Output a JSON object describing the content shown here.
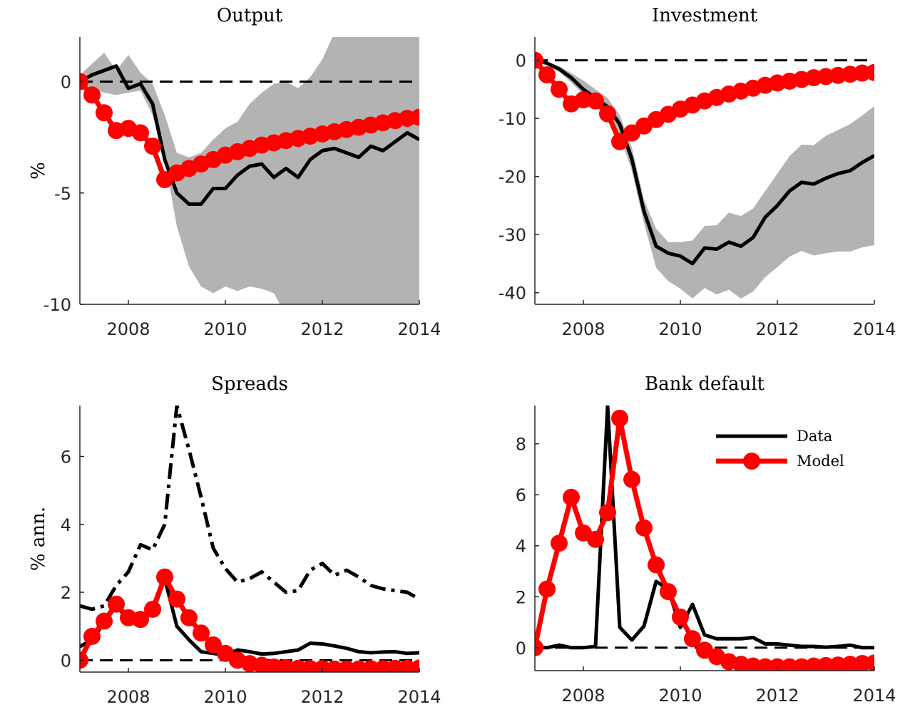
{
  "chart_data": [
    {
      "type": "line",
      "title": "Output",
      "ylabel": "%",
      "x": [
        2007,
        2007.25,
        2007.5,
        2007.75,
        2008,
        2008.25,
        2008.5,
        2008.75,
        2009,
        2009.25,
        2009.5,
        2009.75,
        2010,
        2010.25,
        2010.5,
        2010.75,
        2011,
        2011.25,
        2011.5,
        2011.75,
        2012,
        2012.25,
        2012.5,
        2012.75,
        2013,
        2013.25,
        2013.5,
        2013.75,
        2014
      ],
      "xlim": [
        2007,
        2014
      ],
      "xticks": [
        2008,
        2010,
        2012,
        2014
      ],
      "ylim": [
        -10,
        2
      ],
      "yticks": [
        -10,
        -5,
        0
      ],
      "reference_line": 0,
      "band": {
        "color": "#b3b3b3",
        "upper": [
          0.3,
          0.8,
          1.3,
          0.5,
          1.2,
          0.4,
          -0.1,
          -1.5,
          -3.2,
          -3.4,
          -3.2,
          -2.6,
          -2.1,
          -1.8,
          -1.0,
          -0.5,
          -0.1,
          0,
          -0.3,
          0.2,
          1,
          2.2,
          2.2,
          2.2,
          2.2,
          2.2,
          2.2,
          2.2,
          2.2
        ],
        "lower": [
          0,
          -0.3,
          -0.5,
          -0.6,
          -0.5,
          -0.4,
          -1.5,
          -3.5,
          -6.5,
          -8.3,
          -9.2,
          -9.5,
          -9.2,
          -9.4,
          -9.2,
          -9.3,
          -9.5,
          -10.5,
          -11,
          -11,
          -11,
          -11,
          -11,
          -11,
          -11,
          -11,
          -11,
          -11,
          -11
        ]
      },
      "series": [
        {
          "color": "#000000",
          "style": "solid",
          "values": [
            0,
            0.3,
            0.5,
            0.7,
            -0.3,
            -0.1,
            -1,
            -3.5,
            -5,
            -5.5,
            -5.5,
            -4.8,
            -4.8,
            -4.2,
            -3.8,
            -3.7,
            -4.3,
            -3.9,
            -4.3,
            -3.5,
            -3.1,
            -3.0,
            -3.2,
            -3.4,
            -2.9,
            -3.1,
            -2.7,
            -2.3,
            -2.6
          ]
        },
        {
          "color": "#ff0000",
          "style": "marker",
          "values": [
            0,
            -0.6,
            -1.4,
            -2.2,
            -2.1,
            -2.3,
            -2.9,
            -4.4,
            -4.1,
            -3.9,
            -3.7,
            -3.5,
            -3.3,
            -3.15,
            -3.0,
            -2.85,
            -2.75,
            -2.65,
            -2.55,
            -2.45,
            -2.35,
            -2.25,
            -2.15,
            -2.05,
            -1.95,
            -1.85,
            -1.75,
            -1.65,
            -1.6
          ]
        }
      ]
    },
    {
      "type": "line",
      "title": "Investment",
      "x": [
        2007,
        2007.25,
        2007.5,
        2007.75,
        2008,
        2008.25,
        2008.5,
        2008.75,
        2009,
        2009.25,
        2009.5,
        2009.75,
        2010,
        2010.25,
        2010.5,
        2010.75,
        2011,
        2011.25,
        2011.5,
        2011.75,
        2012,
        2012.25,
        2012.5,
        2012.75,
        2013,
        2013.25,
        2013.5,
        2013.75,
        2014
      ],
      "xlim": [
        2007,
        2014
      ],
      "xticks": [
        2008,
        2010,
        2012,
        2014
      ],
      "ylim": [
        -42,
        4
      ],
      "yticks": [
        -40,
        -30,
        -20,
        -10,
        0
      ],
      "reference_line": 0,
      "band": {
        "color": "#b3b3b3",
        "upper": [
          0,
          -0.3,
          -1,
          -2.2,
          -3.5,
          -5,
          -6.5,
          -9.5,
          -15,
          -24,
          -29,
          -31.3,
          -31.3,
          -31,
          -28.5,
          -28.4,
          -26.2,
          -26.8,
          -25.5,
          -22.5,
          -19.5,
          -16.5,
          -14.5,
          -14.6,
          -13,
          -12,
          -11,
          -9.5,
          -7.9
        ],
        "lower": [
          0,
          -0.8,
          -2,
          -3.8,
          -6,
          -8,
          -9.8,
          -13,
          -19,
          -28,
          -35.7,
          -38,
          -39.3,
          -41,
          -39.2,
          -40.3,
          -39.5,
          -41,
          -39.8,
          -37.3,
          -35.6,
          -33.8,
          -32.8,
          -33.6,
          -33.2,
          -32.9,
          -32.9,
          -32.2,
          -31.8
        ]
      },
      "series": [
        {
          "color": "#000000",
          "style": "solid",
          "values": [
            0,
            -0.5,
            -1.5,
            -3,
            -5,
            -6.5,
            -8,
            -11,
            -17,
            -26,
            -32,
            -33.2,
            -33.7,
            -35,
            -32.3,
            -32.5,
            -31.3,
            -32,
            -30.5,
            -27,
            -25,
            -22.5,
            -21,
            -21.3,
            -20.3,
            -19.5,
            -19,
            -17.6,
            -16.4
          ]
        },
        {
          "color": "#ff0000",
          "style": "marker",
          "values": [
            0,
            -2.5,
            -5,
            -7.5,
            -6.8,
            -7,
            -9.2,
            -14,
            -12.5,
            -11.3,
            -10.2,
            -9.3,
            -8.4,
            -7.7,
            -7,
            -6.4,
            -5.8,
            -5.3,
            -4.8,
            -4.3,
            -3.9,
            -3.6,
            -3.3,
            -3.0,
            -2.8,
            -2.6,
            -2.4,
            -2.2,
            -2.1
          ]
        }
      ]
    },
    {
      "type": "line",
      "title": "Spreads",
      "ylabel": "% ann.",
      "x": [
        2007,
        2007.25,
        2007.5,
        2007.75,
        2008,
        2008.25,
        2008.5,
        2008.75,
        2009,
        2009.25,
        2009.5,
        2009.75,
        2010,
        2010.25,
        2010.5,
        2010.75,
        2011,
        2011.25,
        2011.5,
        2011.75,
        2012,
        2012.25,
        2012.5,
        2012.75,
        2013,
        2013.25,
        2013.5,
        2013.75,
        2014
      ],
      "xlim": [
        2007,
        2014
      ],
      "xticks": [
        2008,
        2010,
        2012,
        2014
      ],
      "ylim": [
        -0.35,
        7.5
      ],
      "yticks": [
        0,
        2,
        4,
        6
      ],
      "reference_line": 0,
      "series": [
        {
          "color": "#000000",
          "style": "dashdot",
          "values": [
            1.6,
            1.5,
            1.6,
            2.2,
            2.6,
            3.4,
            3.25,
            4.0,
            7.5,
            6.2,
            4.8,
            3.3,
            2.7,
            2.3,
            2.4,
            2.6,
            2.3,
            2.0,
            2.05,
            2.65,
            2.85,
            2.5,
            2.65,
            2.45,
            2.2,
            2.1,
            2.05,
            2.0,
            1.8
          ]
        },
        {
          "color": "#000000",
          "style": "solid",
          "values": [
            0.4,
            0.6,
            1.1,
            1.6,
            1.2,
            1.15,
            1.4,
            2.4,
            1.0,
            0.6,
            0.25,
            0.2,
            0.15,
            0.3,
            0.25,
            0.18,
            0.2,
            0.25,
            0.3,
            0.5,
            0.48,
            0.42,
            0.35,
            0.25,
            0.22,
            0.24,
            0.25,
            0.2,
            0.22
          ]
        },
        {
          "color": "#ff0000",
          "style": "marker",
          "values": [
            0,
            0.7,
            1.15,
            1.65,
            1.25,
            1.2,
            1.5,
            2.45,
            1.8,
            1.25,
            0.8,
            0.45,
            0.2,
            0.0,
            -0.1,
            -0.15,
            -0.2,
            -0.22,
            -0.24,
            -0.25,
            -0.25,
            -0.26,
            -0.26,
            -0.26,
            -0.25,
            -0.25,
            -0.24,
            -0.24,
            -0.23
          ]
        }
      ]
    },
    {
      "type": "line",
      "title": "Bank default",
      "legend": "northeast",
      "x": [
        2007,
        2007.25,
        2007.5,
        2007.75,
        2008,
        2008.25,
        2008.5,
        2008.75,
        2009,
        2009.25,
        2009.5,
        2009.75,
        2010,
        2010.25,
        2010.5,
        2010.75,
        2011,
        2011.25,
        2011.5,
        2011.75,
        2012,
        2012.25,
        2012.5,
        2012.75,
        2013,
        2013.25,
        2013.5,
        2013.75,
        2014
      ],
      "xlim": [
        2007,
        2014
      ],
      "xticks": [
        2008,
        2010,
        2012,
        2014
      ],
      "ylim": [
        -0.9,
        9.5
      ],
      "yticks": [
        0,
        2,
        4,
        6,
        8
      ],
      "reference_line": 0,
      "series": [
        {
          "name": "Data",
          "color": "#000000",
          "style": "solid",
          "values": [
            0,
            0,
            0.1,
            0,
            0,
            0.05,
            9.5,
            0.8,
            0.3,
            0.85,
            2.6,
            2.3,
            0.8,
            1.7,
            0.5,
            0.35,
            0.35,
            0.35,
            0.4,
            0.15,
            0.15,
            0.1,
            0.05,
            0.05,
            0.02,
            0.05,
            0.1,
            0.0,
            0.0
          ]
        },
        {
          "name": "Model",
          "color": "#ff0000",
          "style": "marker",
          "values": [
            0,
            2.3,
            4.1,
            5.9,
            4.5,
            4.25,
            5.3,
            9.0,
            6.6,
            4.7,
            3.25,
            2.2,
            1.2,
            0.35,
            -0.1,
            -0.35,
            -0.55,
            -0.65,
            -0.72,
            -0.75,
            -0.75,
            -0.75,
            -0.75,
            -0.72,
            -0.7,
            -0.68,
            -0.65,
            -0.62,
            -0.6
          ]
        }
      ]
    }
  ]
}
